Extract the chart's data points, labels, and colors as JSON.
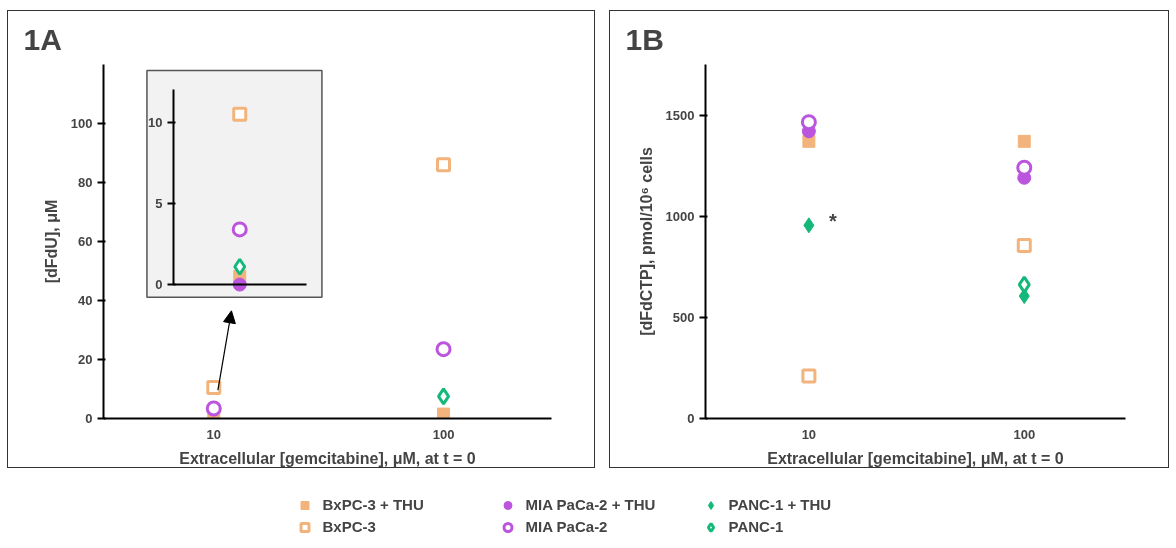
{
  "chart_data": [
    {
      "type": "scatter",
      "title": "1A",
      "xlabel": "Extracellular [gemcitabine], μM, at t = 0",
      "ylabel": "[dFdU], μM",
      "categories": [
        "10",
        "100"
      ],
      "ylim": [
        0,
        120
      ],
      "yticks": [
        0,
        20,
        40,
        60,
        80,
        100
      ],
      "grid": false,
      "legend": "bottom",
      "series": [
        {
          "name": "BxPC-3 + THU",
          "color": "#f2b47c",
          "marker": "square",
          "values": [
            0.5,
            1.5
          ]
        },
        {
          "name": "MIA PaCa-2 + THU",
          "color": "#bb55de",
          "marker": "circle",
          "values": [
            null,
            null
          ]
        },
        {
          "name": "PANC-1 + THU",
          "color": "#14b87a",
          "marker": "diamond",
          "values": [
            null,
            null
          ]
        },
        {
          "name": "BxPC-3",
          "color": "#f2b47c",
          "marker": "square",
          "values": [
            10.5,
            86
          ]
        },
        {
          "name": "MIA PaCa-2",
          "color": "#bb55de",
          "marker": "circle",
          "values": [
            3.4,
            23.5
          ]
        },
        {
          "name": "PANC-1",
          "color": "#14b87a",
          "marker": "diamond",
          "values": [
            null,
            7.5
          ]
        }
      ]
    },
    {
      "type": "scatter",
      "categories": [
        null
      ],
      "ylim": [
        0,
        12
      ],
      "yticks": [
        0,
        5,
        10
      ],
      "tick_labels": "y",
      "series": [
        {
          "color": "#f2b47c",
          "marker": "square",
          "values": [
            0.5
          ]
        },
        {
          "color": "#bb55de",
          "marker": "circle",
          "values": [
            0
          ]
        },
        {
          "color": "#14b87a",
          "marker": "diamond",
          "values": [
            null
          ]
        },
        {
          "color": "#f2b47c",
          "marker": "square",
          "values": [
            10.5
          ]
        },
        {
          "color": "#bb55de",
          "marker": "circle",
          "values": [
            3.4
          ]
        },
        {
          "color": "#14b87a",
          "marker": "diamond",
          "values": [
            1.1
          ]
        }
      ]
    },
    {
      "type": "scatter",
      "title": "1B",
      "xlabel": "Extracellular [gemcitabine], μM, at t = 0",
      "ylabel": "[dFdCTP], pmol/10⁶ cells",
      "categories": [
        "10",
        "100"
      ],
      "ylim": [
        0,
        1750
      ],
      "yticks": [
        0,
        500,
        1000,
        1500
      ],
      "grid": false,
      "annotations": [
        {
          "text": "*",
          "x": "10",
          "y": 960
        }
      ],
      "series": [
        {
          "color": "#f2b47c",
          "marker": "square",
          "values": [
            1370,
            1370
          ]
        },
        {
          "color": "#bb55de",
          "marker": "circle",
          "values": [
            1420,
            1190
          ]
        },
        {
          "color": "#14b87a",
          "marker": "diamond",
          "values": [
            955,
            605
          ]
        },
        {
          "color": "#f2b47c",
          "marker": "square",
          "values": [
            210,
            855
          ]
        },
        {
          "color": "#bb55de",
          "marker": "circle",
          "values": [
            1465,
            1240
          ]
        },
        {
          "color": "#14b87a",
          "marker": "diamond",
          "values": [
            null,
            662
          ]
        }
      ]
    }
  ]
}
